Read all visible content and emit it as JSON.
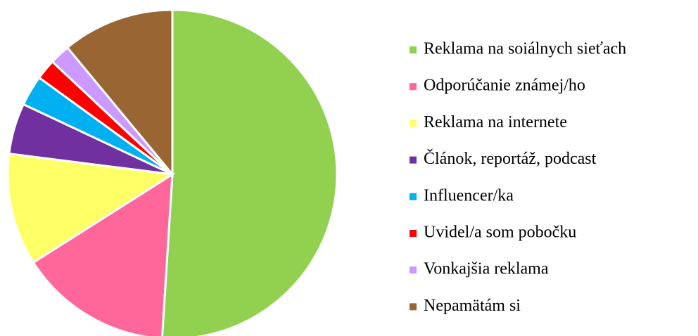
{
  "chart_data": {
    "type": "pie",
    "categories": [
      "Reklama na soiálnych sieťach",
      "Odporúčanie známej/ho",
      "Reklama na internete",
      "Článok, reportáž, podcast",
      "Influencer/ka",
      "Uvidel/a som pobočku",
      "Vonkajšia reklama",
      "Nepamätám si"
    ],
    "values": [
      51,
      15,
      11,
      5,
      3,
      2,
      2,
      11
    ],
    "colors": [
      "#92d050",
      "#ff6699",
      "#ffff66",
      "#7030a0",
      "#00b0f0",
      "#ff0000",
      "#cc99ff",
      "#996633"
    ],
    "legend": "right"
  }
}
